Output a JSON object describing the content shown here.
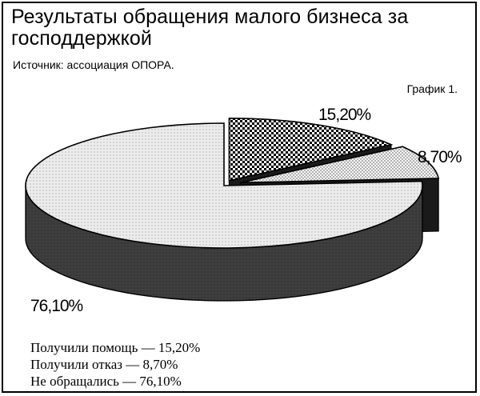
{
  "header": {
    "title": "Результаты обращения малого бизнеса за господдержкой",
    "source": "Источник: ассоциация ОПОРА.",
    "chart_number": "График 1."
  },
  "chart_data": {
    "type": "pie",
    "style": "3d-exploded",
    "title": "Результаты обращения малого бизнеса за господдержкой",
    "slices": [
      {
        "label": "Получили помощь",
        "value": 15.2,
        "value_label": "15,20%",
        "legend_text": "Получили помощь — 15,20%",
        "pattern": "checkered"
      },
      {
        "label": "Получили отказ",
        "value": 8.7,
        "value_label": "8,70%",
        "legend_text": "Получили отказ — 8,70%",
        "pattern": "dotted-light"
      },
      {
        "label": "Не обращались",
        "value": 76.1,
        "value_label": "76,10%",
        "legend_text": "Не обращались — 76,10%",
        "pattern": "light-gray-dots"
      }
    ],
    "legend_placement": "bottom-left",
    "colors": {
      "side": "#3a3a3a",
      "top_light": "#e8e8e8",
      "outline": "#000000"
    }
  }
}
